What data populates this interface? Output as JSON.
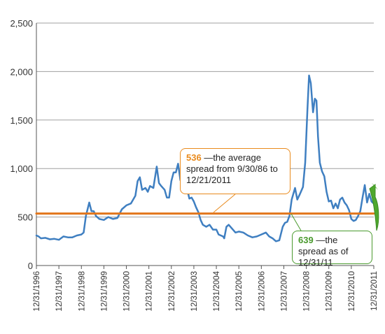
{
  "chart_data": {
    "type": "line",
    "title": "",
    "xlabel": "",
    "ylabel": "",
    "ylim": [
      0,
      2500
    ],
    "yticks": [
      0,
      500,
      1000,
      1500,
      2000,
      2500
    ],
    "ytick_labels": [
      "0",
      "500",
      "1,000",
      "1,500",
      "2,000",
      "2,500"
    ],
    "xlim": [
      1996.0,
      2011.0
    ],
    "xtick_labels": [
      "12/31/1996",
      "12/31/1997",
      "12/31/1998",
      "12/31/1999",
      "12/31/2000",
      "12/31/2001",
      "12/31/2002",
      "12/31/2003",
      "12/31/2004",
      "12/31/2005",
      "12/31/2006",
      "12/31/2007",
      "12/31/2008",
      "12/31/2009",
      "12/31/2010",
      "12/31/2011"
    ],
    "grid": "horizontal",
    "series": [
      {
        "color": "#3f7fc1",
        "x": [
          1996.0,
          1996.1,
          1996.2,
          1996.4,
          1996.6,
          1996.8,
          1997.0,
          1997.2,
          1997.4,
          1997.6,
          1997.8,
          1998.0,
          1998.1,
          1998.2,
          1998.35,
          1998.45,
          1998.55,
          1998.65,
          1998.8,
          1999.0,
          1999.2,
          1999.3,
          1999.4,
          1999.6,
          1999.8,
          2000.0,
          2000.2,
          2000.4,
          2000.5,
          2000.6,
          2000.7,
          2000.85,
          2000.95,
          2001.05,
          2001.2,
          2001.35,
          2001.45,
          2001.55,
          2001.7,
          2001.8,
          2001.9,
          2002.0,
          2002.1,
          2002.2,
          2002.3,
          2002.4,
          2002.5,
          2002.6,
          2002.7,
          2002.8,
          2002.9,
          2003.0,
          2003.1,
          2003.2,
          2003.3,
          2003.4,
          2003.55,
          2003.7,
          2003.85,
          2004.0,
          2004.1,
          2004.2,
          2004.3,
          2004.35,
          2004.45,
          2004.55,
          2004.7,
          2004.85,
          2005.0,
          2005.2,
          2005.4,
          2005.6,
          2005.8,
          2006.0,
          2006.2,
          2006.35,
          2006.5,
          2006.65,
          2006.8,
          2006.95,
          2007.05,
          2007.15,
          2007.25,
          2007.35,
          2007.5,
          2007.6,
          2007.7,
          2007.85,
          2007.95,
          2008.05,
          2008.12,
          2008.2,
          2008.3,
          2008.38,
          2008.45,
          2008.52,
          2008.6,
          2008.7,
          2008.8,
          2008.9,
          2009.0,
          2009.1,
          2009.2,
          2009.3,
          2009.4,
          2009.5,
          2009.6,
          2009.7,
          2009.8,
          2009.9,
          2010.0,
          2010.1,
          2010.2,
          2010.3,
          2010.4,
          2010.5,
          2010.6,
          2010.7,
          2010.8,
          2010.9,
          2011.0
        ],
        "values": [
          310,
          300,
          280,
          285,
          270,
          275,
          265,
          300,
          290,
          290,
          310,
          320,
          340,
          510,
          650,
          560,
          560,
          510,
          480,
          470,
          500,
          490,
          480,
          490,
          580,
          620,
          640,
          720,
          870,
          910,
          780,
          800,
          760,
          820,
          800,
          1020,
          850,
          820,
          780,
          700,
          700,
          870,
          960,
          960,
          1050,
          880,
          870,
          780,
          790,
          690,
          700,
          660,
          600,
          550,
          470,
          420,
          400,
          420,
          370,
          370,
          320,
          310,
          300,
          280,
          400,
          420,
          380,
          340,
          350,
          340,
          310,
          290,
          300,
          320,
          340,
          300,
          280,
          250,
          260,
          400,
          440,
          450,
          510,
          680,
          800,
          680,
          730,
          810,
          1060,
          1610,
          1960,
          1880,
          1580,
          1720,
          1700,
          1330,
          1060,
          970,
          920,
          760,
          660,
          670,
          590,
          640,
          590,
          680,
          700,
          650,
          620,
          570,
          480,
          460,
          470,
          510,
          560,
          700,
          830,
          650,
          740,
          660,
          639
        ]
      },
      {
        "name": "average",
        "color": "#e2761b",
        "x": [
          1996.0,
          2011.0
        ],
        "values": [
          536,
          536
        ]
      }
    ],
    "annotations": [
      {
        "value": "536",
        "text": " —the average spread from 9/30/86 to 12/21/2011",
        "color": "#e98a1c"
      },
      {
        "value": "639",
        "text": " —the spread as of 12/31/11",
        "color": "#4a9a2e"
      }
    ]
  },
  "callouts": {
    "average_value": "536",
    "average_text": " —the average spread from 9/30/86 to 12/21/2011",
    "current_value": "639",
    "current_text": " —the spread as of 12/31/11"
  },
  "colors": {
    "series": "#3f7fc1",
    "average_line": "#e2761b",
    "average_callout": "#e98a1c",
    "current_callout": "#4a9a2e",
    "grid": "#a0a0a0"
  },
  "icons": {
    "current_arrow": "curved-arrow-icon"
  }
}
